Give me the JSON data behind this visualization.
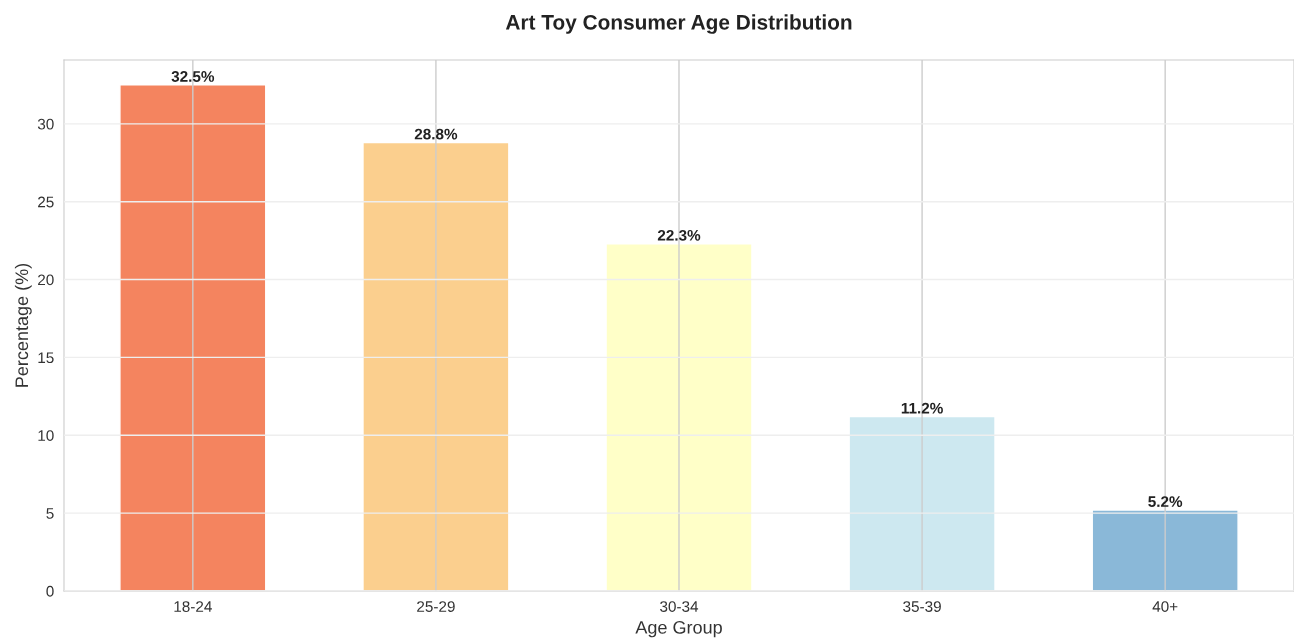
{
  "chart_data": {
    "type": "bar",
    "title": "Art Toy Consumer Age Distribution",
    "xlabel": "Age Group",
    "ylabel": "Percentage (%)",
    "categories": [
      "18-24",
      "25-29",
      "30-34",
      "35-39",
      "40+"
    ],
    "values": [
      32.5,
      28.8,
      22.3,
      11.2,
      5.2
    ],
    "colors": [
      "#f4845f",
      "#fbcf8e",
      "#ffffc8",
      "#cde8f0",
      "#8ab8d8"
    ],
    "value_labels": [
      "32.5%",
      "28.8%",
      "22.3%",
      "11.2%",
      "5.2%"
    ],
    "ylim": [
      0,
      34.1
    ],
    "yticks": [
      0,
      5,
      10,
      15,
      20,
      25,
      30
    ],
    "grid": true
  }
}
